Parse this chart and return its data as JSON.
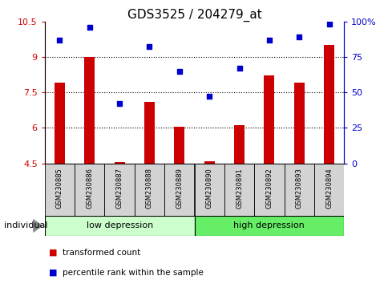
{
  "title": "GDS3525 / 204279_at",
  "samples": [
    "GSM230885",
    "GSM230886",
    "GSM230887",
    "GSM230888",
    "GSM230889",
    "GSM230890",
    "GSM230891",
    "GSM230892",
    "GSM230893",
    "GSM230894"
  ],
  "bar_values": [
    7.9,
    9.0,
    4.55,
    7.1,
    6.05,
    4.6,
    6.1,
    8.2,
    7.9,
    9.5
  ],
  "percentile_values": [
    87,
    96,
    42,
    82,
    65,
    47,
    67,
    87,
    89,
    98
  ],
  "bar_color": "#cc0000",
  "percentile_color": "#0000cc",
  "ylim_left": [
    4.5,
    10.5
  ],
  "ylim_right": [
    0,
    100
  ],
  "yticks_left": [
    4.5,
    6.0,
    7.5,
    9.0,
    10.5
  ],
  "ytick_labels_left": [
    "4.5",
    "6",
    "7.5",
    "9",
    "10.5"
  ],
  "yticks_right": [
    0,
    25,
    50,
    75,
    100
  ],
  "ytick_labels_right": [
    "0",
    "25",
    "50",
    "75",
    "100%"
  ],
  "group1_label": "low depression",
  "group2_label": "high depression",
  "group1_indices": [
    0,
    1,
    2,
    3,
    4
  ],
  "group2_indices": [
    5,
    6,
    7,
    8,
    9
  ],
  "group1_color": "#ccffcc",
  "group2_color": "#66ee66",
  "individual_label": "individual",
  "legend1_label": "transformed count",
  "legend2_label": "percentile rank within the sample",
  "hlines": [
    6.0,
    7.5,
    9.0
  ],
  "bar_bottom": 4.5,
  "title_fontsize": 11,
  "bar_width": 0.35
}
